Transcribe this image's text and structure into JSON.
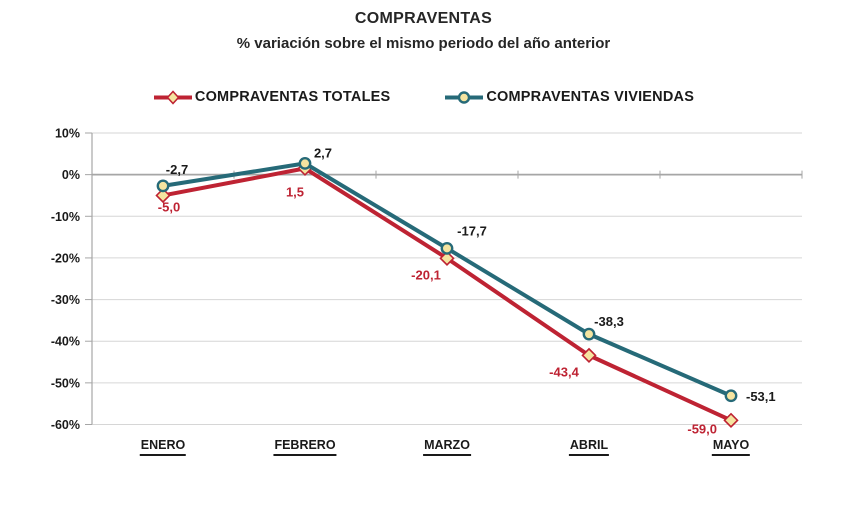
{
  "title": "COMPRAVENTAS",
  "subtitle": "% variación sobre el mismo periodo del año anterior",
  "chart_data": {
    "type": "line",
    "categories": [
      "ENERO",
      "FEBRERO",
      "MARZO",
      "ABRIL",
      "MAYO"
    ],
    "series": [
      {
        "name": "COMPRAVENTAS TOTALES",
        "color": "#BE2333",
        "marker": "diamond",
        "label_color": "#BE2333",
        "values": [
          -5.0,
          1.5,
          -20.1,
          -43.4,
          -59.0
        ],
        "point_labels": [
          "-5,0",
          "1,5",
          "-20,1",
          "-43,4",
          "-59,0"
        ]
      },
      {
        "name": "COMPRAVENTAS VIVIENDAS",
        "color": "#266A78",
        "marker": "circle",
        "label_color": "#1A1A1A",
        "values": [
          -2.7,
          2.7,
          -17.7,
          -38.3,
          -53.1
        ],
        "point_labels": [
          "-2,7",
          "2,7",
          "-17,7",
          "-38,3",
          "-53,1"
        ]
      }
    ],
    "ylim": [
      -60,
      10
    ],
    "ytick_step": 10,
    "ytick_suffix": "%",
    "ytick_labels": [
      "10%",
      "0%",
      "-10%",
      "-20%",
      "-30%",
      "-40%",
      "-50%",
      "-60%"
    ],
    "grid": true,
    "legend_position": "top",
    "marker_fill": "#F5E4A0",
    "grid_color": "#D6D6D6",
    "axis_color": "#A6A6A6",
    "text_color": "#1A1A1A"
  }
}
